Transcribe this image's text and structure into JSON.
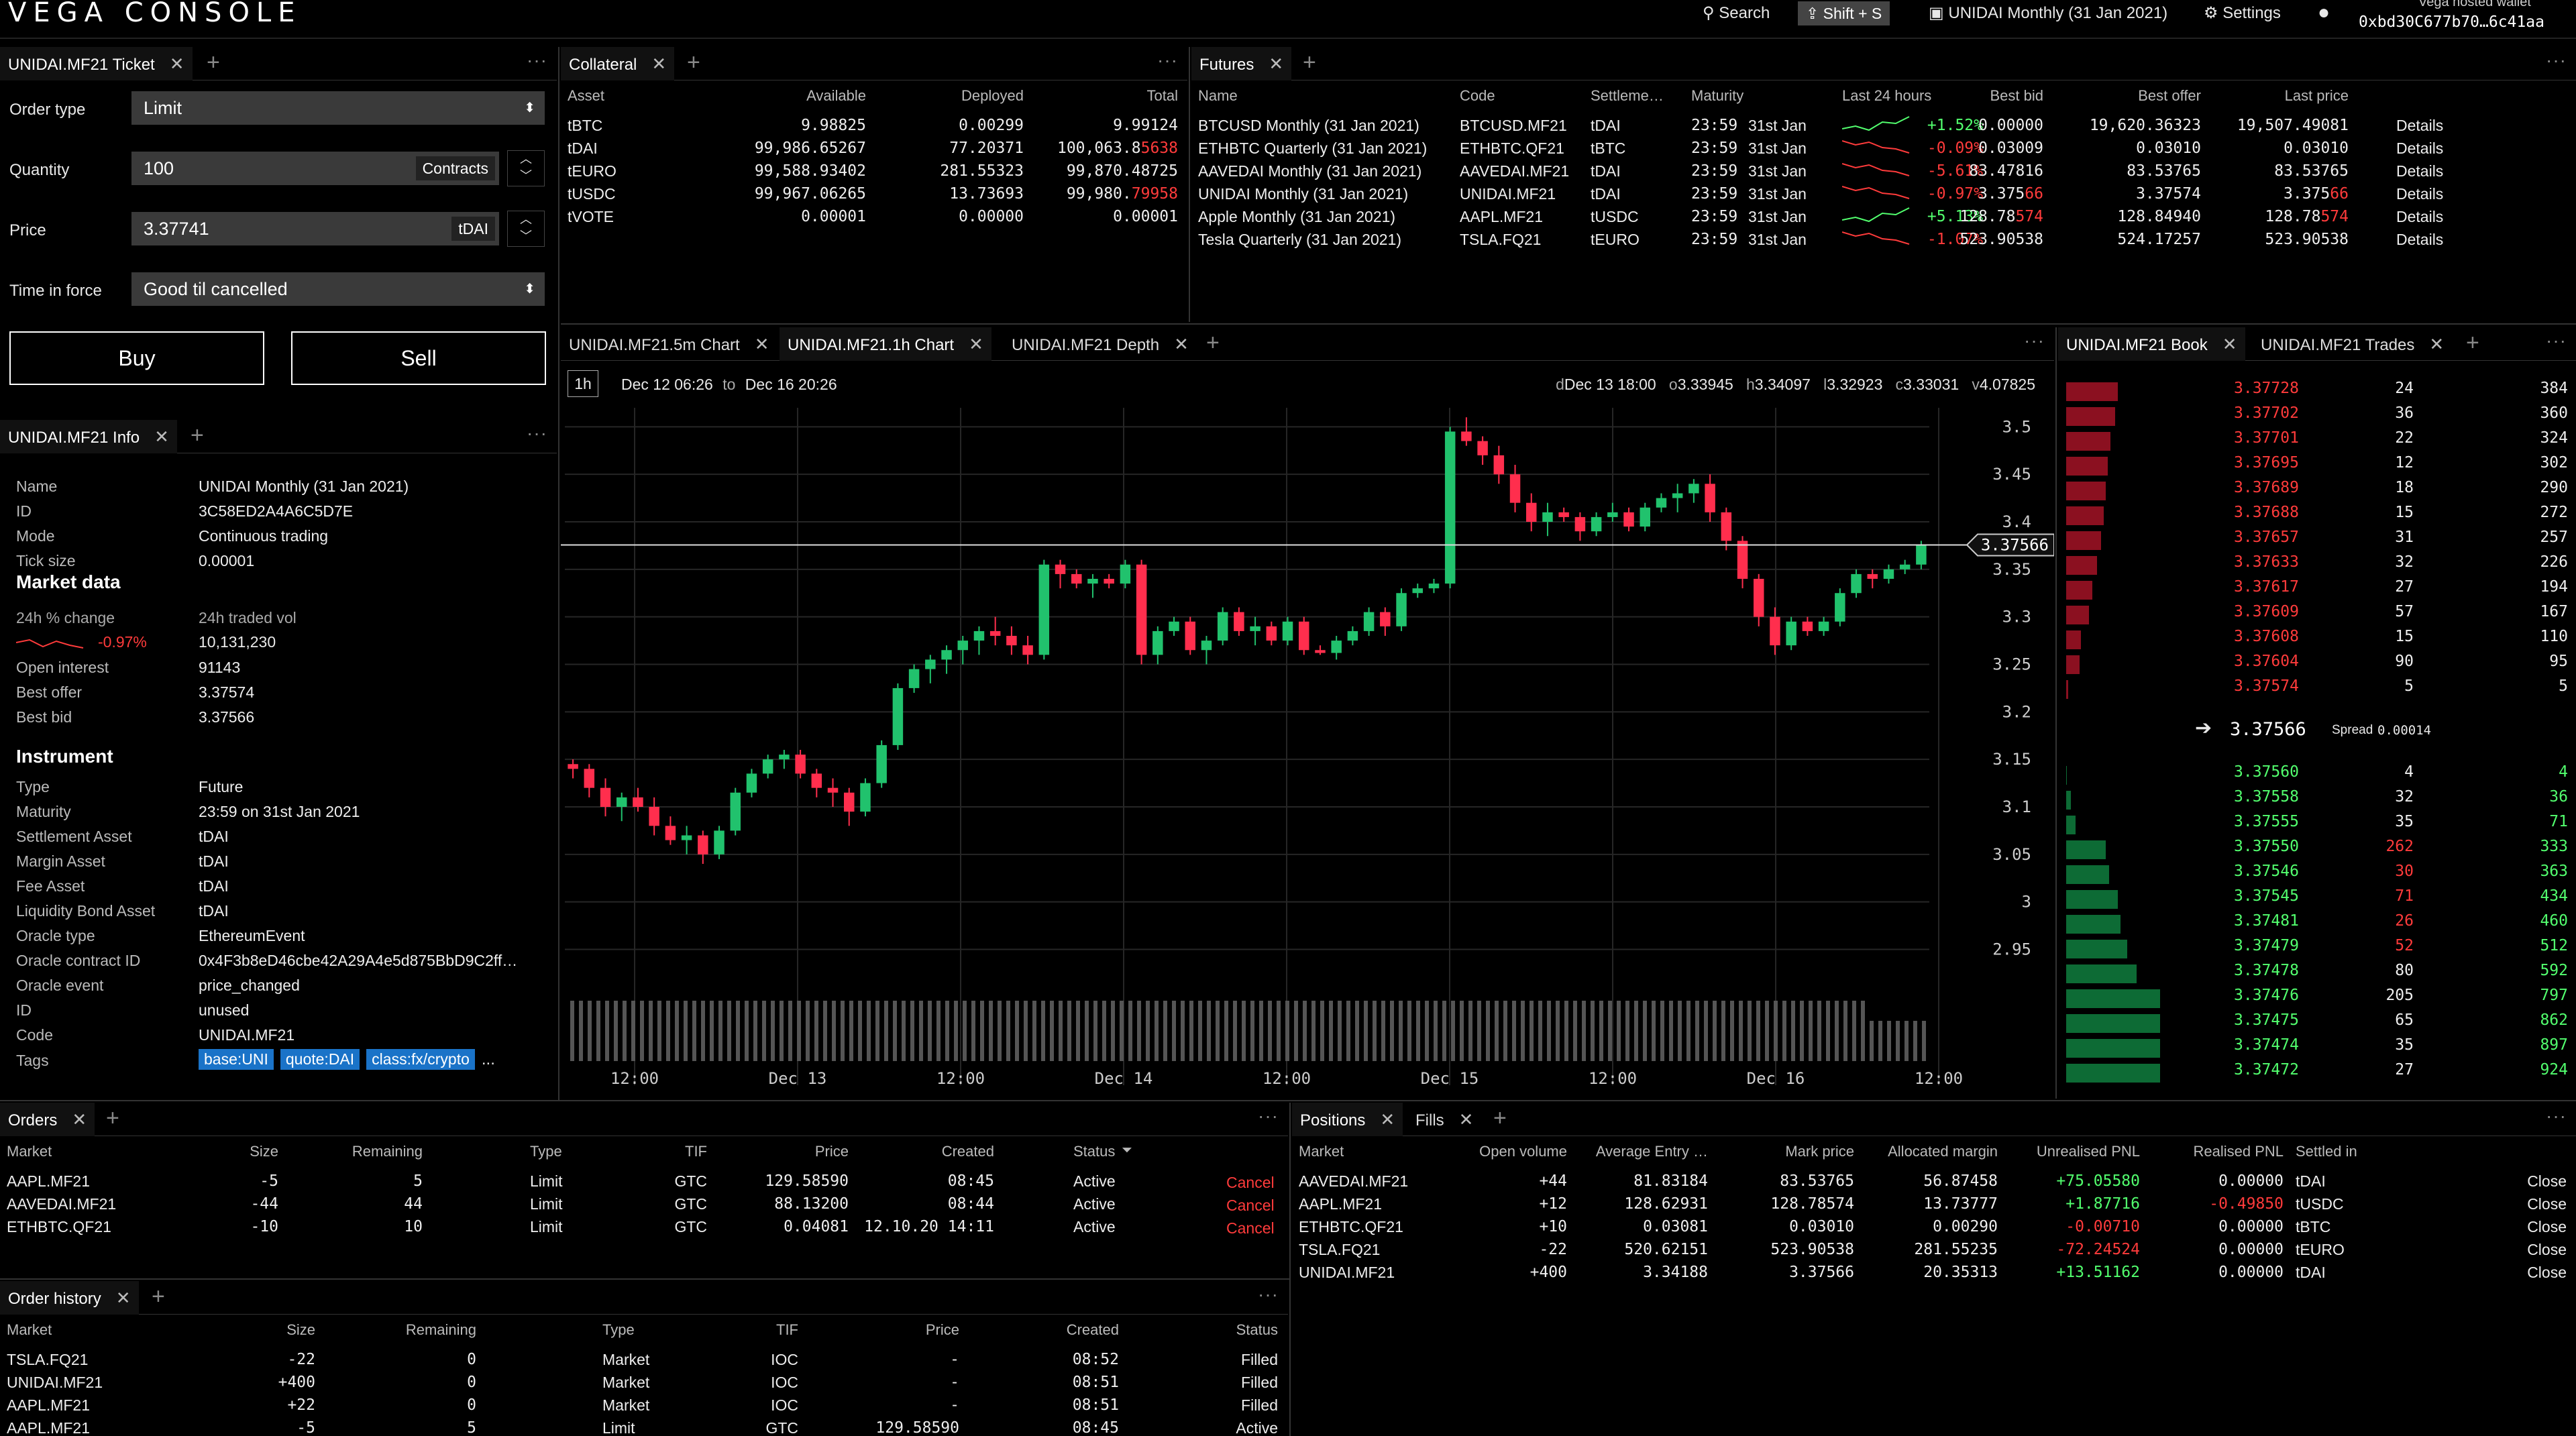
{
  "header": {
    "logo": "VEGA CONSOLE",
    "search": "Search",
    "shortcut": "Shift + S",
    "market": "UNIDAI Monthly (31 Jan 2021)",
    "settings": "Settings",
    "wallet_label": "Vega hosted wallet",
    "wallet_key": "0xbd30C677b70…6c41aa"
  },
  "ticket": {
    "tab": "UNIDAI.MF21 Ticket",
    "order_type_label": "Order type",
    "order_type": "Limit",
    "quantity_label": "Quantity",
    "quantity": "100",
    "quantity_unit": "Contracts",
    "price_label": "Price",
    "price": "3.37741",
    "price_unit": "tDAI",
    "tif_label": "Time in force",
    "tif": "Good til cancelled",
    "buy": "Buy",
    "sell": "Sell"
  },
  "info": {
    "tab": "UNIDAI.MF21 Info",
    "top": [
      [
        "Name",
        "UNIDAI Monthly (31 Jan 2021)"
      ],
      [
        "ID",
        "3C58ED2A4A6C5D7E"
      ],
      [
        "Mode",
        "Continuous trading"
      ],
      [
        "Tick size",
        "0.00001"
      ]
    ],
    "market_data_title": "Market data",
    "change_label": "24h % change",
    "change_value": "-0.97%",
    "vol_label": "24h traded vol",
    "vol_value": "10,131,230",
    "market": [
      [
        "Open interest",
        "91143"
      ],
      [
        "Best offer",
        "3.37574"
      ],
      [
        "Best bid",
        "3.37566"
      ]
    ],
    "instrument_title": "Instrument",
    "instrument": [
      [
        "Type",
        "Future"
      ],
      [
        "Maturity",
        "23:59 on 31st Jan 2021"
      ],
      [
        "Settlement Asset",
        "tDAI"
      ],
      [
        "Margin Asset",
        "tDAI"
      ],
      [
        "Fee Asset",
        "tDAI"
      ],
      [
        "Liquidity Bond Asset",
        "tDAI"
      ],
      [
        "Oracle type",
        "EthereumEvent"
      ],
      [
        "Oracle contract ID",
        "0x4F3b8eD46cbe42A29A4e5d875BbD9C2ff…"
      ],
      [
        "Oracle event",
        "price_changed"
      ],
      [
        "ID",
        "unused"
      ],
      [
        "Code",
        "UNIDAI.MF21"
      ]
    ],
    "tags_label": "Tags",
    "tags": [
      "base:UNI",
      "quote:DAI",
      "class:fx/crypto"
    ],
    "tags_more": "..."
  },
  "collateral": {
    "tab": "Collateral",
    "headers": [
      "Asset",
      "Available",
      "Deployed",
      "Total"
    ],
    "rows": [
      [
        "tBTC",
        "9.98825",
        "0.00299",
        "9.99124",
        ""
      ],
      [
        "tDAI",
        "99,986.65267",
        "77.20371",
        "100,063.8",
        "5638"
      ],
      [
        "tEURO",
        "99,588.93402",
        "281.55323",
        "99,870.48725",
        ""
      ],
      [
        "tUSDC",
        "99,967.06265",
        "13.73693",
        "99,980.",
        "79958"
      ],
      [
        "tVOTE",
        "0.00001",
        "0.00000",
        "0.00001",
        ""
      ]
    ]
  },
  "futures": {
    "tab": "Futures",
    "headers": [
      "Name",
      "Code",
      "Settleme…",
      "Maturity",
      "Last 24 hours",
      "Best bid",
      "Best offer",
      "Last price"
    ],
    "rows": [
      {
        "name": "BTCUSD Monthly (31 Jan 2021)",
        "code": "BTCUSD.MF21",
        "settle": "tDAI",
        "time": "23:59",
        "date": "31st Jan",
        "change": "+1.52%",
        "up": true,
        "bid": "0.00000",
        "offer": "19,620.36323",
        "last": "19,507.49081",
        "last_hl": "",
        "details": "Details"
      },
      {
        "name": "ETHBTC Quarterly (31 Jan 2021)",
        "code": "ETHBTC.QF21",
        "settle": "tBTC",
        "time": "23:59",
        "date": "31st Jan",
        "change": "-0.09%",
        "up": false,
        "bid": "0.03009",
        "offer": "0.03010",
        "last": "0.03010",
        "last_hl": "",
        "details": "Details"
      },
      {
        "name": "AAVEDAI Monthly (31 Jan 2021)",
        "code": "AAVEDAI.MF21",
        "settle": "tDAI",
        "time": "23:59",
        "date": "31st Jan",
        "change": "-5.61%",
        "up": false,
        "bid": "83.47816",
        "offer": "83.53765",
        "last": "83.53765",
        "last_hl": "",
        "details": "Details"
      },
      {
        "name": "UNIDAI Monthly (31 Jan 2021)",
        "code": "UNIDAI.MF21",
        "settle": "tDAI",
        "time": "23:59",
        "date": "31st Jan",
        "change": "-0.97%",
        "up": false,
        "bid": "3.375",
        "bid_hl": "66",
        "offer": "3.37574",
        "last": "3.375",
        "last_hl": "66",
        "details": "Details"
      },
      {
        "name": "Apple Monthly (31 Jan 2021)",
        "code": "AAPL.MF21",
        "settle": "tUSDC",
        "time": "23:59",
        "date": "31st Jan",
        "change": "+5.13%",
        "up": true,
        "bid": "128.78",
        "bid_hl": "574",
        "offer": "128.84940",
        "last": "128.78",
        "last_hl": "574",
        "details": "Details"
      },
      {
        "name": "Tesla Quarterly (31 Jan 2021)",
        "code": "TSLA.FQ21",
        "settle": "tEURO",
        "time": "23:59",
        "date": "31st Jan",
        "change": "-1.07%",
        "up": false,
        "bid": "523.90538",
        "offer": "524.17257",
        "last": "523.90538",
        "last_hl": "",
        "details": "Details"
      }
    ]
  },
  "chart_tabs": {
    "tab1": "UNIDAI.MF21.5m Chart",
    "tab2": "UNIDAI.MF21.1h Chart",
    "tab3": "UNIDAI.MF21 Depth"
  },
  "chart_bar": {
    "interval": "1h",
    "from": "Dec 12 06:26",
    "to_word": "to",
    "to": "Dec 16 20:26",
    "d_label": "d",
    "d": "Dec 13 18:00",
    "o_label": "o",
    "o": "3.33945",
    "h_label": "h",
    "h": "3.34097",
    "l_label": "l",
    "l": "3.32923",
    "c_label": "c",
    "c": "3.33031",
    "v_label": "v",
    "v": "4.07825"
  },
  "chart_data": {
    "type": "candlestick",
    "title": "",
    "x_ticks": [
      "12:00",
      "Dec 13",
      "12:00",
      "Dec 14",
      "12:00",
      "Dec 15",
      "12:00",
      "Dec 16",
      "12:00"
    ],
    "y_ticks": [
      "3.5",
      "3.45",
      "3.4",
      "3.35",
      "3.3",
      "3.25",
      "3.2",
      "3.15",
      "3.1",
      "3.05",
      "3",
      "2.95"
    ],
    "ylim": [
      2.92,
      3.52
    ],
    "last_price": "3.37566",
    "candles": [
      [
        3.145,
        3.15,
        3.13,
        3.14
      ],
      [
        3.14,
        3.145,
        3.11,
        3.12
      ],
      [
        3.12,
        3.13,
        3.09,
        3.1
      ],
      [
        3.1,
        3.115,
        3.085,
        3.11
      ],
      [
        3.11,
        3.12,
        3.095,
        3.1
      ],
      [
        3.1,
        3.11,
        3.07,
        3.08
      ],
      [
        3.08,
        3.09,
        3.06,
        3.065
      ],
      [
        3.065,
        3.08,
        3.05,
        3.07
      ],
      [
        3.07,
        3.075,
        3.04,
        3.05
      ],
      [
        3.05,
        3.08,
        3.045,
        3.075
      ],
      [
        3.075,
        3.12,
        3.07,
        3.115
      ],
      [
        3.115,
        3.14,
        3.11,
        3.135
      ],
      [
        3.135,
        3.155,
        3.13,
        3.15
      ],
      [
        3.15,
        3.16,
        3.14,
        3.155
      ],
      [
        3.155,
        3.16,
        3.13,
        3.135
      ],
      [
        3.135,
        3.14,
        3.11,
        3.12
      ],
      [
        3.12,
        3.13,
        3.1,
        3.115
      ],
      [
        3.115,
        3.12,
        3.08,
        3.095
      ],
      [
        3.095,
        3.13,
        3.09,
        3.125
      ],
      [
        3.125,
        3.17,
        3.12,
        3.165
      ],
      [
        3.165,
        3.23,
        3.16,
        3.225
      ],
      [
        3.225,
        3.25,
        3.22,
        3.245
      ],
      [
        3.245,
        3.26,
        3.23,
        3.255
      ],
      [
        3.255,
        3.27,
        3.24,
        3.265
      ],
      [
        3.265,
        3.28,
        3.25,
        3.275
      ],
      [
        3.275,
        3.29,
        3.26,
        3.285
      ],
      [
        3.285,
        3.3,
        3.27,
        3.28
      ],
      [
        3.28,
        3.29,
        3.26,
        3.27
      ],
      [
        3.27,
        3.28,
        3.25,
        3.26
      ],
      [
        3.26,
        3.36,
        3.255,
        3.355
      ],
      [
        3.355,
        3.36,
        3.33,
        3.345
      ],
      [
        3.345,
        3.35,
        3.33,
        3.335
      ],
      [
        3.335,
        3.345,
        3.32,
        3.34
      ],
      [
        3.34,
        3.345,
        3.33,
        3.335
      ],
      [
        3.335,
        3.36,
        3.33,
        3.355
      ],
      [
        3.355,
        3.36,
        3.25,
        3.26
      ],
      [
        3.26,
        3.29,
        3.25,
        3.285
      ],
      [
        3.285,
        3.3,
        3.28,
        3.295
      ],
      [
        3.295,
        3.3,
        3.26,
        3.265
      ],
      [
        3.265,
        3.28,
        3.25,
        3.275
      ],
      [
        3.275,
        3.31,
        3.27,
        3.305
      ],
      [
        3.305,
        3.31,
        3.28,
        3.285
      ],
      [
        3.285,
        3.3,
        3.27,
        3.29
      ],
      [
        3.29,
        3.295,
        3.27,
        3.275
      ],
      [
        3.275,
        3.3,
        3.27,
        3.295
      ],
      [
        3.295,
        3.3,
        3.26,
        3.265
      ],
      [
        3.265,
        3.27,
        3.26,
        3.262
      ],
      [
        3.262,
        3.28,
        3.255,
        3.275
      ],
      [
        3.275,
        3.29,
        3.27,
        3.285
      ],
      [
        3.285,
        3.31,
        3.28,
        3.305
      ],
      [
        3.305,
        3.31,
        3.28,
        3.29
      ],
      [
        3.29,
        3.33,
        3.285,
        3.325
      ],
      [
        3.325,
        3.335,
        3.32,
        3.33
      ],
      [
        3.33,
        3.34,
        3.325,
        3.335
      ],
      [
        3.335,
        3.5,
        3.33,
        3.495
      ],
      [
        3.495,
        3.51,
        3.48,
        3.485
      ],
      [
        3.485,
        3.49,
        3.46,
        3.47
      ],
      [
        3.47,
        3.48,
        3.44,
        3.45
      ],
      [
        3.45,
        3.46,
        3.41,
        3.42
      ],
      [
        3.42,
        3.43,
        3.39,
        3.4
      ],
      [
        3.4,
        3.42,
        3.385,
        3.41
      ],
      [
        3.41,
        3.415,
        3.4,
        3.405
      ],
      [
        3.405,
        3.41,
        3.38,
        3.39
      ],
      [
        3.39,
        3.41,
        3.385,
        3.405
      ],
      [
        3.405,
        3.42,
        3.4,
        3.41
      ],
      [
        3.41,
        3.415,
        3.39,
        3.395
      ],
      [
        3.395,
        3.42,
        3.39,
        3.415
      ],
      [
        3.415,
        3.43,
        3.41,
        3.425
      ],
      [
        3.425,
        3.44,
        3.41,
        3.43
      ],
      [
        3.43,
        3.445,
        3.42,
        3.44
      ],
      [
        3.44,
        3.45,
        3.4,
        3.41
      ],
      [
        3.41,
        3.415,
        3.37,
        3.38
      ],
      [
        3.38,
        3.385,
        3.33,
        3.34
      ],
      [
        3.34,
        3.345,
        3.29,
        3.3
      ],
      [
        3.3,
        3.31,
        3.26,
        3.27
      ],
      [
        3.27,
        3.3,
        3.265,
        3.295
      ],
      [
        3.295,
        3.3,
        3.28,
        3.285
      ],
      [
        3.285,
        3.3,
        3.28,
        3.295
      ],
      [
        3.295,
        3.33,
        3.29,
        3.325
      ],
      [
        3.325,
        3.35,
        3.32,
        3.345
      ],
      [
        3.345,
        3.35,
        3.33,
        3.34
      ],
      [
        3.34,
        3.355,
        3.335,
        3.35
      ],
      [
        3.35,
        3.36,
        3.345,
        3.355
      ],
      [
        3.355,
        3.38,
        3.35,
        3.375
      ]
    ]
  },
  "book": {
    "tab1": "UNIDAI.MF21 Book",
    "tab2": "UNIDAI.MF21 Trades",
    "asks": [
      [
        "3.37728",
        "24",
        "384",
        0.55
      ],
      [
        "3.37702",
        "36",
        "360",
        0.52
      ],
      [
        "3.37701",
        "22",
        "324",
        0.47
      ],
      [
        "3.37695",
        "12",
        "302",
        0.44
      ],
      [
        "3.37689",
        "18",
        "290",
        0.42
      ],
      [
        "3.37688",
        "15",
        "272",
        0.4
      ],
      [
        "3.37657",
        "31",
        "257",
        0.37
      ],
      [
        "3.37633",
        "32",
        "226",
        0.33
      ],
      [
        "3.37617",
        "27",
        "194",
        0.28
      ],
      [
        "3.37609",
        "57",
        "167",
        0.24
      ],
      [
        "3.37608",
        "15",
        "110",
        0.16
      ],
      [
        "3.37604",
        "90",
        "95",
        0.14
      ],
      [
        "3.37574",
        "5",
        "5",
        0.02
      ]
    ],
    "mid": "3.37566",
    "spread_label": "Spread",
    "spread": "0.00014",
    "bids": [
      [
        "3.37560",
        "4",
        "4",
        0.01
      ],
      [
        "3.37558",
        "32",
        "36",
        0.05
      ],
      [
        "3.37555",
        "35",
        "71",
        0.1
      ],
      [
        "3.37550",
        "262",
        "333",
        0.42
      ],
      [
        "3.37546",
        "30",
        "363",
        0.46
      ],
      [
        "3.37545",
        "71",
        "434",
        0.55
      ],
      [
        "3.37481",
        "26",
        "460",
        0.58
      ],
      [
        "3.37479",
        "52",
        "512",
        0.65
      ],
      [
        "3.37478",
        "80",
        "592",
        0.75
      ],
      [
        "3.37476",
        "205",
        "797",
        1.0
      ],
      [
        "3.37475",
        "65",
        "862",
        1.08
      ],
      [
        "3.37474",
        "35",
        "897",
        1.12
      ],
      [
        "3.37472",
        "27",
        "924",
        1.16
      ]
    ]
  },
  "orders": {
    "tab": "Orders",
    "headers": [
      "Market",
      "Size",
      "Remaining",
      "Type",
      "TIF",
      "Price",
      "Created",
      "Status"
    ],
    "rows": [
      [
        "AAPL.MF21",
        "-5",
        "5",
        "Limit",
        "GTC",
        "129.58590",
        "08:45",
        "Active",
        "Cancel"
      ],
      [
        "AAVEDAI.MF21",
        "-44",
        "44",
        "Limit",
        "GTC",
        "88.13200",
        "08:44",
        "Active",
        "Cancel"
      ],
      [
        "ETHBTC.QF21",
        "-10",
        "10",
        "Limit",
        "GTC",
        "0.04081",
        "12.10.20 14:11",
        "Active",
        "Cancel"
      ]
    ]
  },
  "positions": {
    "tab1": "Positions",
    "tab2": "Fills",
    "headers": [
      "Market",
      "Open volume",
      "Average Entry …",
      "Mark price",
      "Allocated margin",
      "Unrealised PNL",
      "Realised PNL",
      "Settled in"
    ],
    "rows": [
      [
        "AAVEDAI.MF21",
        "+44",
        "81.83184",
        "83.53765",
        "56.87458",
        "+75.05580",
        "0.00000",
        "tDAI",
        "Close"
      ],
      [
        "AAPL.MF21",
        "+12",
        "128.62931",
        "128.78574",
        "13.73777",
        "+1.87716",
        "-0.49850",
        "tUSDC",
        "Close"
      ],
      [
        "ETHBTC.QF21",
        "+10",
        "0.03081",
        "0.03010",
        "0.00290",
        "-0.00710",
        "0.00000",
        "tBTC",
        "Close"
      ],
      [
        "TSLA.FQ21",
        "-22",
        "520.62151",
        "523.90538",
        "281.55235",
        "-72.24524",
        "0.00000",
        "tEURO",
        "Close"
      ],
      [
        "UNIDAI.MF21",
        "+400",
        "3.34188",
        "3.37566",
        "20.35313",
        "+13.51162",
        "0.00000",
        "tDAI",
        "Close"
      ]
    ]
  },
  "history": {
    "tab": "Order history",
    "headers": [
      "Market",
      "Size",
      "Remaining",
      "Type",
      "TIF",
      "Price",
      "Created",
      "Status"
    ],
    "rows": [
      [
        "TSLA.FQ21",
        "-22",
        "0",
        "Market",
        "IOC",
        "-",
        "08:52",
        "Filled"
      ],
      [
        "UNIDAI.MF21",
        "+400",
        "0",
        "Market",
        "IOC",
        "-",
        "08:51",
        "Filled"
      ],
      [
        "AAPL.MF21",
        "+22",
        "0",
        "Market",
        "IOC",
        "-",
        "08:51",
        "Filled"
      ],
      [
        "AAPL.MF21",
        "-5",
        "5",
        "Limit",
        "GTC",
        "129.58590",
        "08:45",
        "Active"
      ]
    ]
  }
}
